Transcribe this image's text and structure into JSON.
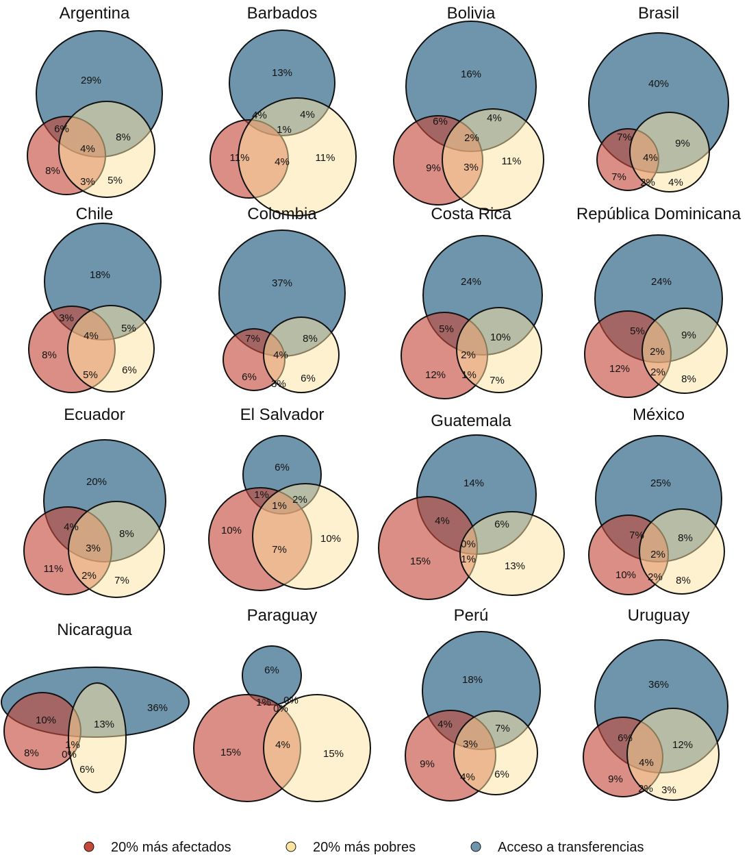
{
  "chart_data": {
    "type": "venn",
    "colors": {
      "afectados": "#c5493a",
      "pobres": "#fde4a0",
      "transferencias": "#6f95ac"
    },
    "legend": [
      {
        "key": "afectados",
        "label": "20% más afectados"
      },
      {
        "key": "pobres",
        "label": "20% más pobres"
      },
      {
        "key": "transferencias",
        "label": "Acceso a transferencias"
      }
    ],
    "region_order": [
      "solo_transferencias",
      "afectados_y_transferencias",
      "pobres_y_transferencias",
      "los_tres",
      "solo_afectados",
      "afectados_y_pobres",
      "solo_pobres"
    ],
    "panels": [
      {
        "title": "Argentina",
        "regions": [
          "29%",
          "6%",
          "8%",
          "4%",
          "8%",
          "3%",
          "5%"
        ]
      },
      {
        "title": "Barbados",
        "regions": [
          "13%",
          "4%",
          "4%",
          "1%",
          "11%",
          "4%",
          "11%"
        ]
      },
      {
        "title": "Bolivia",
        "regions": [
          "16%",
          "6%",
          "4%",
          "2%",
          "9%",
          "3%",
          "11%"
        ]
      },
      {
        "title": "Brasil",
        "regions": [
          "40%",
          "7%",
          "9%",
          "4%",
          "7%",
          "2%",
          "4%"
        ]
      },
      {
        "title": "Chile",
        "regions": [
          "18%",
          "3%",
          "5%",
          "4%",
          "8%",
          "5%",
          "6%"
        ]
      },
      {
        "title": "Colombia",
        "regions": [
          "37%",
          "7%",
          "8%",
          "4%",
          "6%",
          "3%",
          "6%"
        ]
      },
      {
        "title": "Costa Rica",
        "regions": [
          "24%",
          "5%",
          "10%",
          "2%",
          "12%",
          "1%",
          "7%"
        ]
      },
      {
        "title": "República Dominicana",
        "regions": [
          "24%",
          "5%",
          "9%",
          "2%",
          "12%",
          "2%",
          "8%"
        ]
      },
      {
        "title": "Ecuador",
        "regions": [
          "20%",
          "4%",
          "8%",
          "3%",
          "11%",
          "2%",
          "7%"
        ]
      },
      {
        "title": "El Salvador",
        "regions": [
          "6%",
          "1%",
          "2%",
          "1%",
          "10%",
          "7%",
          "10%"
        ]
      },
      {
        "title": "Guatemala",
        "regions": [
          "14%",
          "4%",
          "6%",
          "0%",
          "15%",
          "1%",
          "13%"
        ]
      },
      {
        "title": "México",
        "regions": [
          "25%",
          "7%",
          "8%",
          "2%",
          "10%",
          "2%",
          "8%"
        ]
      },
      {
        "title": "Nicaragua",
        "regions": [
          "36%",
          "10%",
          "13%",
          "1%",
          "8%",
          "0%",
          "6%"
        ]
      },
      {
        "title": "Paraguay",
        "regions": [
          "6%",
          "1%",
          "0%",
          "0%",
          "15%",
          "4%",
          "15%"
        ]
      },
      {
        "title": "Perú",
        "regions": [
          "18%",
          "4%",
          "7%",
          "3%",
          "9%",
          "4%",
          "6%"
        ]
      },
      {
        "title": "Uruguay",
        "regions": [
          "36%",
          "6%",
          "12%",
          "4%",
          "9%",
          "2%",
          "3%"
        ]
      }
    ]
  }
}
